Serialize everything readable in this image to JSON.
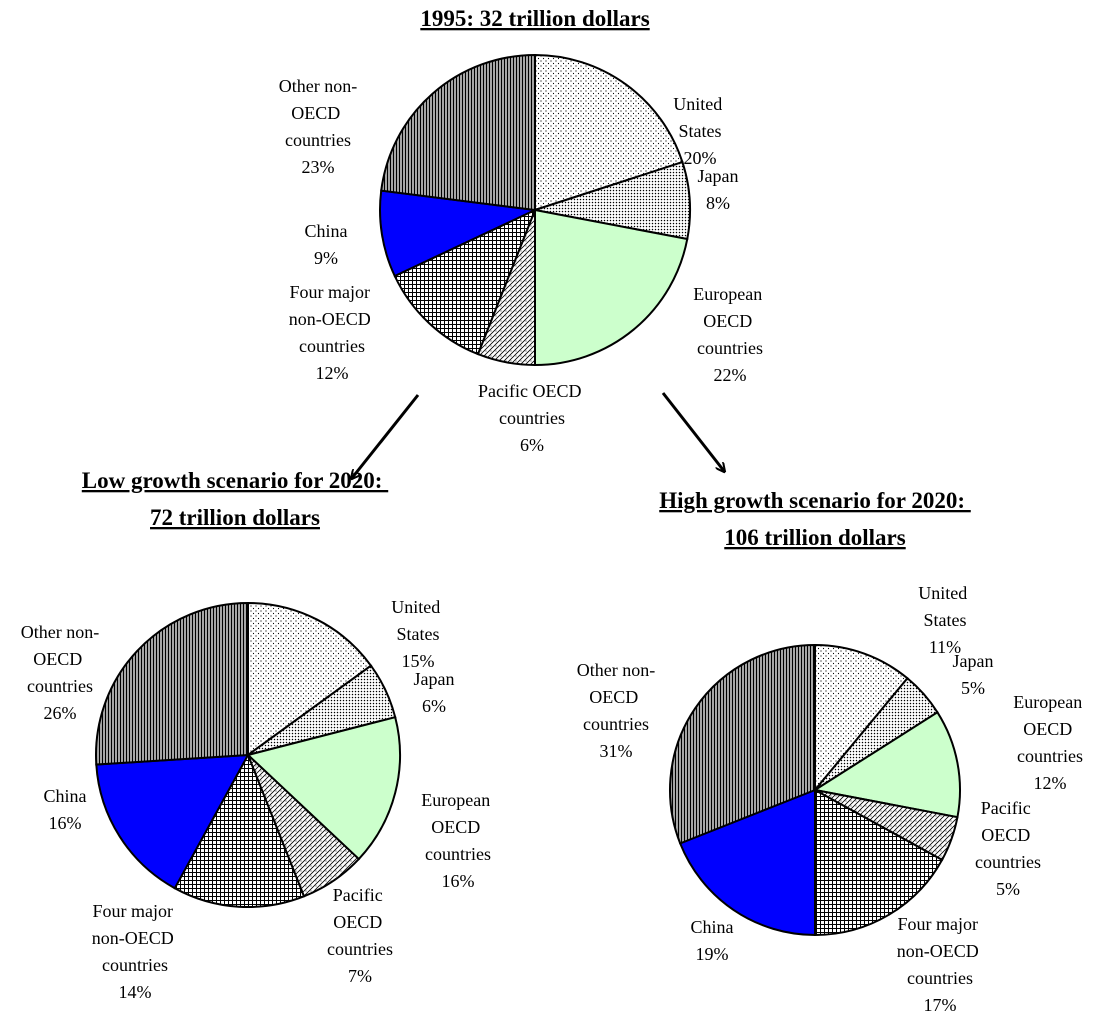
{
  "chart_data": [
    {
      "type": "pie",
      "title": "1995: 32 trillion dollars",
      "categories": [
        "United States",
        "Japan",
        "European OECD countries",
        "Pacific OECD countries",
        "Four major non-OECD countries",
        "China",
        "Other non-OECD countries"
      ],
      "values": [
        20,
        8,
        22,
        6,
        12,
        9,
        23
      ],
      "value_labels": [
        "20%",
        "8%",
        "22%",
        "6%",
        "12%",
        "9%",
        "23%"
      ],
      "colors": [
        "#ffffff",
        "#ffffff",
        "#ccffcc",
        "#ffffff",
        "#ffffff",
        "#0000ff",
        "#a6a6a6"
      ]
    },
    {
      "type": "pie",
      "title": "Low growth scenario for 2020: 72 trillion dollars",
      "categories": [
        "United States",
        "Japan",
        "European OECD countries",
        "Pacific OECD countries",
        "Four major non-OECD countries",
        "China",
        "Other non-OECD countries"
      ],
      "values": [
        15,
        6,
        16,
        7,
        14,
        16,
        26
      ],
      "value_labels": [
        "15%",
        "6%",
        "16%",
        "7%",
        "14%",
        "16%",
        "26%"
      ],
      "colors": [
        "#ffffff",
        "#ffffff",
        "#ccffcc",
        "#ffffff",
        "#ffffff",
        "#0000ff",
        "#a6a6a6"
      ]
    },
    {
      "type": "pie",
      "title": "High growth scenario for 2020: 106 trillion dollars",
      "categories": [
        "United States",
        "Japan",
        "European OECD countries",
        "Pacific OECD countries",
        "Four major non-OECD countries",
        "China",
        "Other non-OECD countries"
      ],
      "values": [
        11,
        5,
        12,
        5,
        17,
        19,
        31
      ],
      "value_labels": [
        "11%",
        "5%",
        "12%",
        "5%",
        "17%",
        "19%",
        "31%"
      ],
      "colors": [
        "#ffffff",
        "#ffffff",
        "#ccffcc",
        "#ffffff",
        "#ffffff",
        "#0000ff",
        "#a6a6a6"
      ]
    }
  ]
}
